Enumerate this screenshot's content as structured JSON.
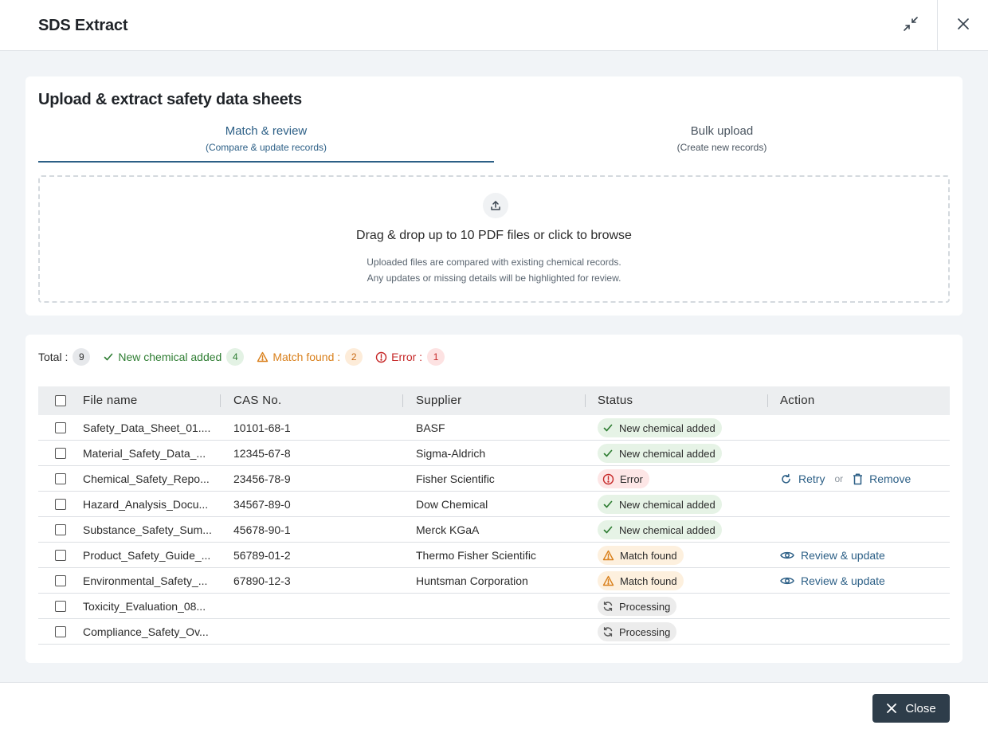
{
  "header": {
    "title": "SDS Extract"
  },
  "upload": {
    "title": "Upload & extract safety data sheets",
    "tabs": [
      {
        "label": "Match & review",
        "sublabel": "(Compare & update records)",
        "active": true
      },
      {
        "label": "Bulk upload",
        "sublabel": "(Create new records)",
        "active": false
      }
    ],
    "dropzone": {
      "main_text": "Drag & drop up to 10 PDF files or click to browse",
      "sub_text_1": "Uploaded files are compared with existing chemical records.",
      "sub_text_2": "Any updates or missing details will be highlighted for review."
    }
  },
  "summary": {
    "total_label": "Total :",
    "total_count": "9",
    "new_label": "New chemical added",
    "new_count": "4",
    "match_label": "Match found :",
    "match_count": "2",
    "error_label": "Error :",
    "error_count": "1"
  },
  "table": {
    "columns": [
      "File name",
      "CAS No.",
      "Supplier",
      "Status",
      "Action"
    ],
    "rows": [
      {
        "file": "Safety_Data_Sheet_01....",
        "cas": "10101-68-1",
        "supplier": "BASF",
        "status": "New chemical added",
        "status_type": "new"
      },
      {
        "file": "Material_Safety_Data_...",
        "cas": "12345-67-8",
        "supplier": "Sigma-Aldrich",
        "status": "New chemical added",
        "status_type": "new"
      },
      {
        "file": "Chemical_Safety_Repo...",
        "cas": "23456-78-9",
        "supplier": "Fisher Scientific",
        "status": "Error",
        "status_type": "error",
        "actions": {
          "retry": "Retry",
          "or": "or",
          "remove": "Remove"
        }
      },
      {
        "file": "Hazard_Analysis_Docu...",
        "cas": "34567-89-0",
        "supplier": "Dow Chemical",
        "status": "New chemical added",
        "status_type": "new"
      },
      {
        "file": "Substance_Safety_Sum...",
        "cas": "45678-90-1",
        "supplier": "Merck KGaA",
        "status": "New chemical added",
        "status_type": "new"
      },
      {
        "file": "Product_Safety_Guide_...",
        "cas": "56789-01-2",
        "supplier": "Thermo Fisher Scientific",
        "status": "Match found",
        "status_type": "match",
        "actions": {
          "review": "Review & update"
        }
      },
      {
        "file": "Environmental_Safety_...",
        "cas": "67890-12-3",
        "supplier": "Huntsman Corporation",
        "status": "Match found",
        "status_type": "match",
        "actions": {
          "review": "Review & update"
        }
      },
      {
        "file": "Toxicity_Evaluation_08...",
        "cas": "",
        "supplier": "",
        "status": "Processing",
        "status_type": "processing"
      },
      {
        "file": "Compliance_Safety_Ov...",
        "cas": "",
        "supplier": "",
        "status": "Processing",
        "status_type": "processing"
      }
    ]
  },
  "footer": {
    "close_label": "Close"
  },
  "colors": {
    "accent": "#2c5f86",
    "success": "#2e7d32",
    "warning": "#d9801c",
    "error": "#c62828",
    "primary_button": "#2e3d4a"
  },
  "icons": {
    "minimize": "minimize-arrows-icon",
    "close": "close-icon",
    "upload": "upload-icon",
    "check": "check-icon",
    "warning": "warning-triangle-icon",
    "error": "error-circle-icon",
    "processing": "refresh-icon",
    "retry": "retry-icon",
    "remove": "trash-icon",
    "review": "eye-icon"
  }
}
